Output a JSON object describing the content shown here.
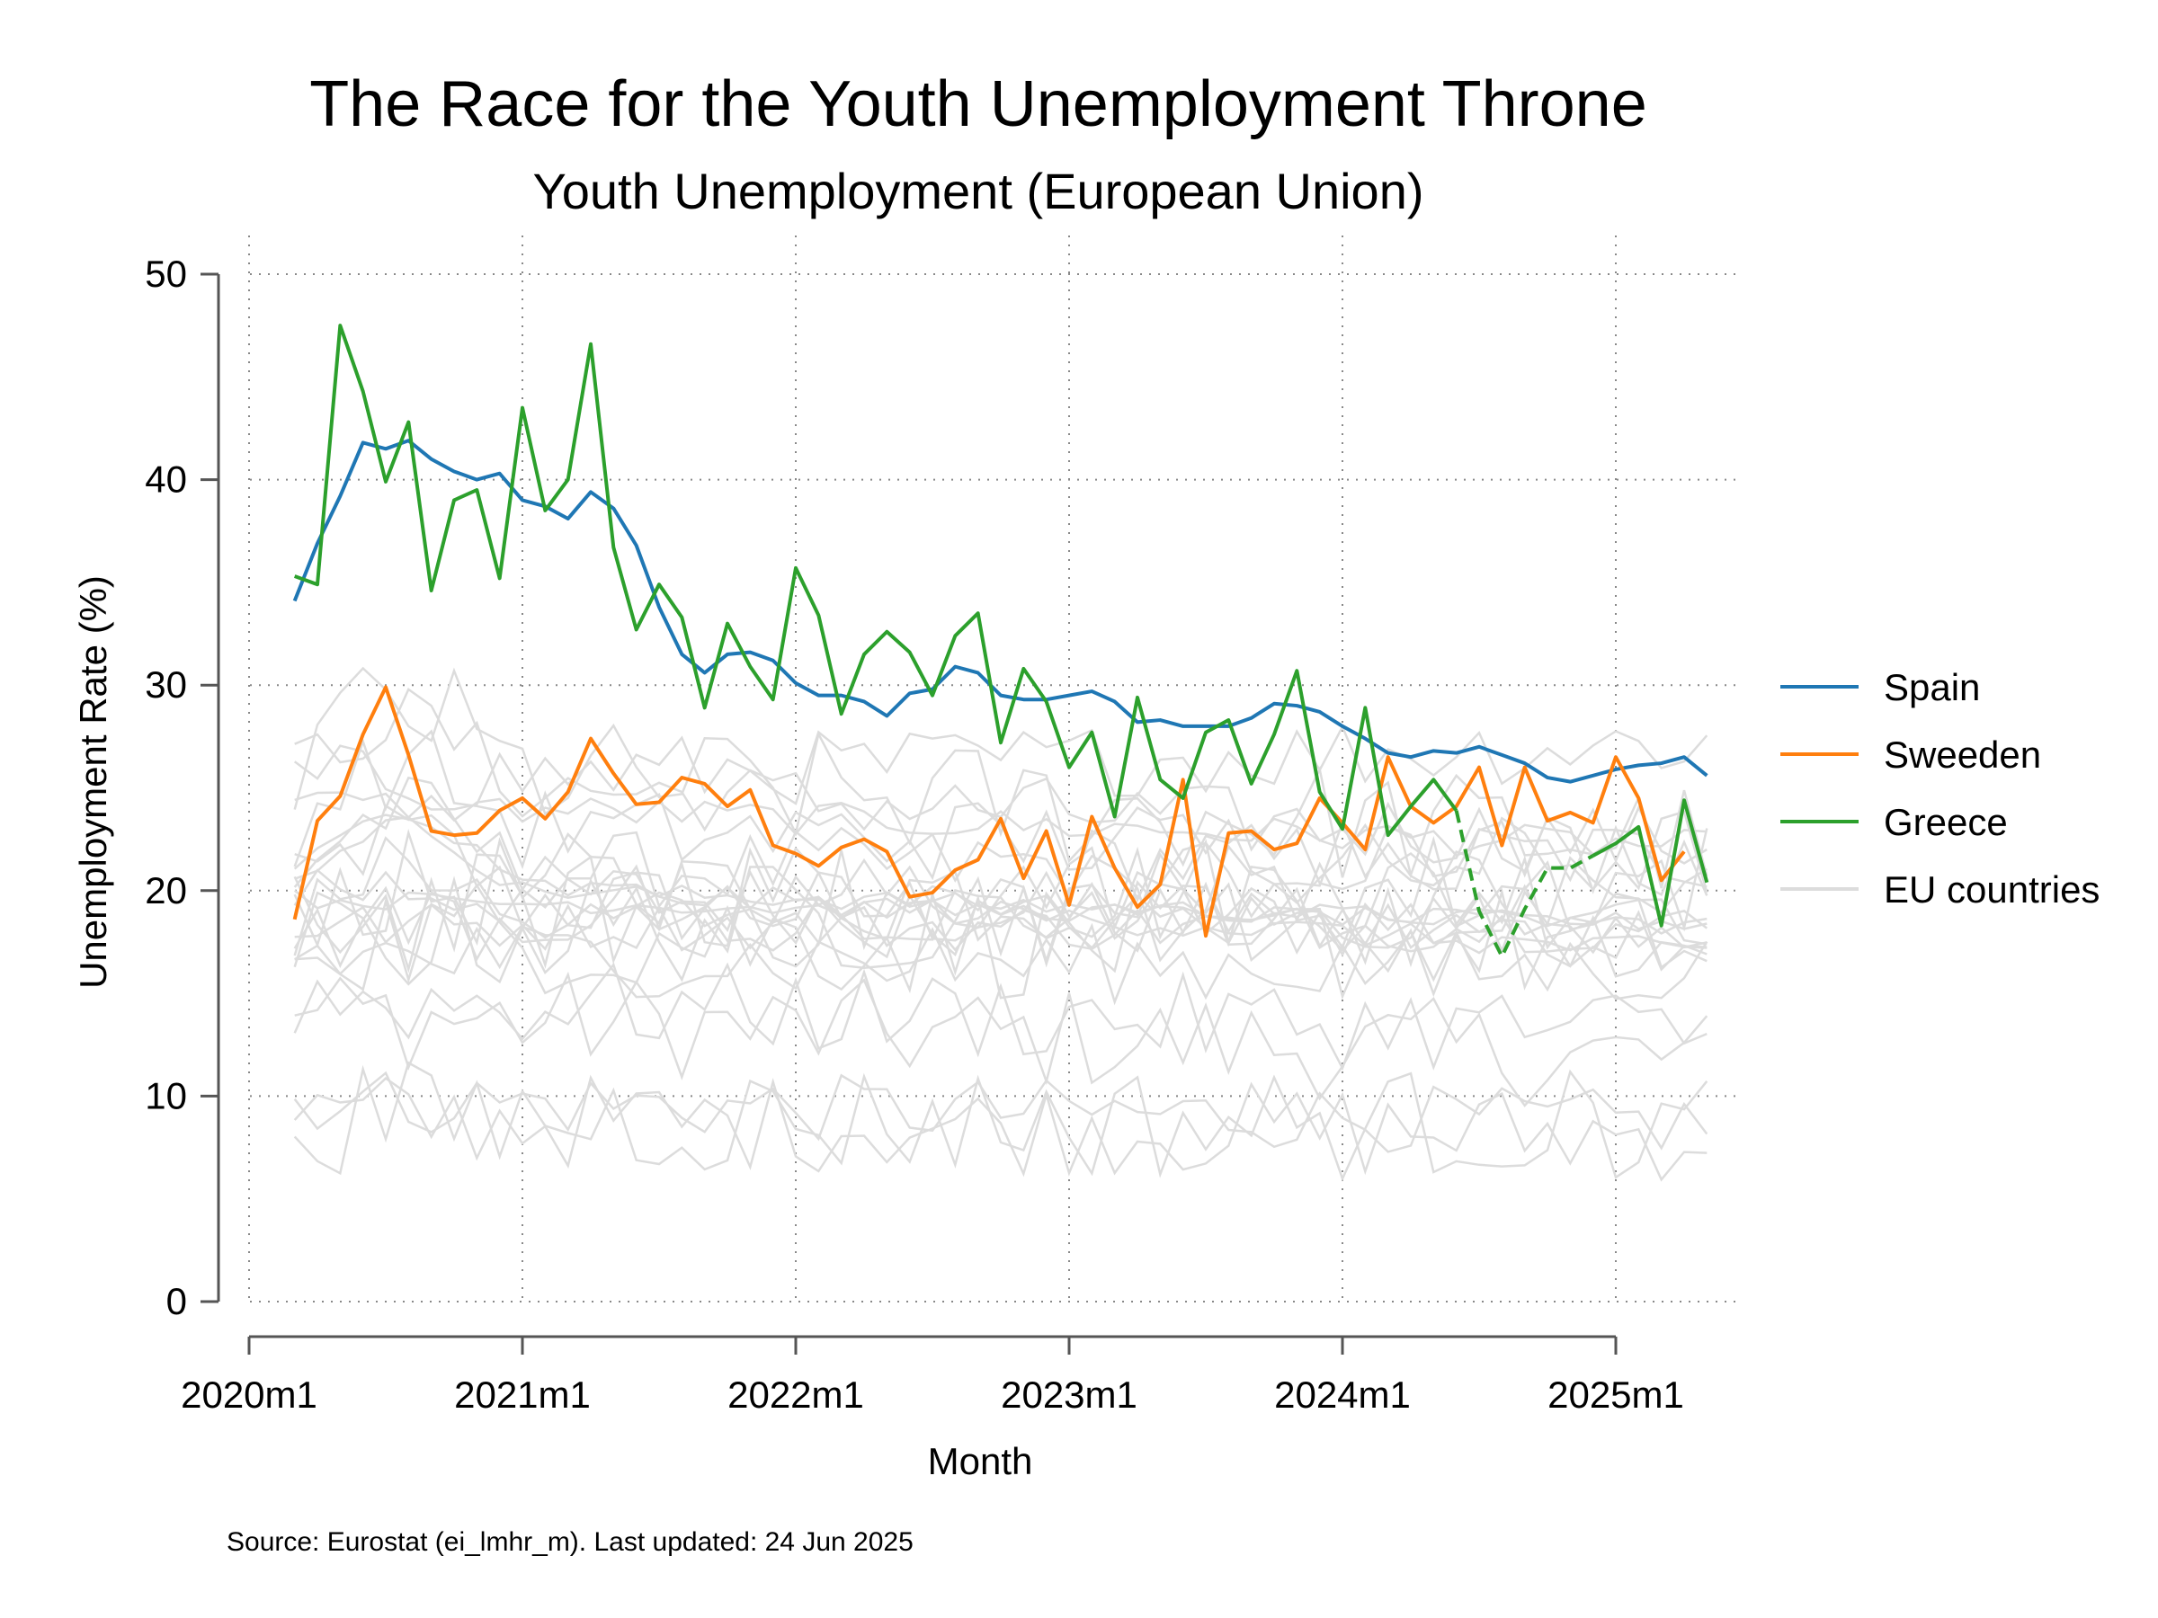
{
  "chart_data": {
    "type": "line",
    "title": "The Race for the Youth Unemployment Throne",
    "subtitle": "Youth Unemployment (European Union)",
    "xlabel": "Month",
    "ylabel": "Unemployment Rate (%)",
    "ylim": [
      0,
      50
    ],
    "yticks": [
      0,
      10,
      20,
      30,
      40,
      50
    ],
    "xlim": [
      0,
      64
    ],
    "xticks": [
      {
        "pos": 0,
        "label": "2020m1"
      },
      {
        "pos": 12,
        "label": "2021m1"
      },
      {
        "pos": 24,
        "label": "2022m1"
      },
      {
        "pos": 36,
        "label": "2023m1"
      },
      {
        "pos": 48,
        "label": "2024m1"
      },
      {
        "pos": 60,
        "label": "2025m1"
      }
    ],
    "grid": true,
    "legend_position": "right",
    "note": "Source: Eurostat (ei_lmhr_m). Last updated: 24 Jun 2025",
    "start_month": "2020m3",
    "series": [
      {
        "name": "Spain",
        "color": "#1f77b4",
        "values": [
          34.1,
          36.9,
          39.2,
          41.8,
          41.5,
          41.9,
          41.0,
          40.4,
          40.0,
          40.3,
          39.0,
          38.7,
          38.1,
          39.4,
          38.6,
          36.8,
          33.8,
          31.5,
          30.6,
          31.5,
          31.6,
          31.2,
          30.1,
          29.5,
          29.5,
          29.2,
          28.5,
          29.6,
          29.8,
          30.9,
          30.6,
          29.5,
          29.3,
          29.3,
          29.5,
          29.7,
          29.2,
          28.2,
          28.3,
          28.0,
          28.0,
          28.0,
          28.4,
          29.1,
          29.0,
          28.7,
          28.0,
          27.4,
          26.7,
          26.5,
          26.8,
          26.7,
          27.0,
          26.6,
          26.2,
          25.5,
          25.3,
          25.6,
          25.9,
          26.1,
          26.2,
          26.5,
          25.6
        ]
      },
      {
        "name": "Sweeden",
        "color": "#ff7f0e",
        "values": [
          18.6,
          23.4,
          24.6,
          27.6,
          29.9,
          26.6,
          22.9,
          22.7,
          22.8,
          23.9,
          24.5,
          23.5,
          24.8,
          27.4,
          25.7,
          24.2,
          24.3,
          25.5,
          25.2,
          24.1,
          24.9,
          22.2,
          21.8,
          21.2,
          22.1,
          22.5,
          21.9,
          19.7,
          19.9,
          21.0,
          21.5,
          23.5,
          20.6,
          22.9,
          19.3,
          23.6,
          21.1,
          19.2,
          20.3,
          25.4,
          17.8,
          22.8,
          22.9,
          22.0,
          22.3,
          24.5,
          23.3,
          22.0,
          26.5,
          24.1,
          23.3,
          24.1,
          26.0,
          22.2,
          26.0,
          23.4,
          23.8,
          23.3,
          26.5,
          24.5,
          20.5,
          21.9
        ]
      },
      {
        "name": "Greece",
        "color": "#2ca02c",
        "values": [
          35.3,
          34.9,
          47.5,
          44.3,
          39.9,
          42.8,
          34.6,
          39.0,
          39.5,
          35.2,
          43.5,
          38.5,
          40.0,
          46.6,
          36.7,
          32.7,
          34.9,
          33.3,
          28.9,
          33.0,
          30.9,
          29.3,
          35.7,
          33.4,
          28.6,
          31.5,
          32.6,
          31.6,
          29.5,
          32.4,
          33.5,
          27.2,
          30.8,
          29.2,
          26.0,
          27.7,
          23.6,
          29.4,
          25.4,
          24.5,
          27.7,
          28.3,
          25.2,
          27.6,
          30.7,
          24.8,
          23.0,
          28.9,
          22.7,
          24.1,
          25.4,
          23.9,
          19.0,
          16.8,
          19.1,
          21.1,
          21.1,
          21.7,
          22.3,
          23.1,
          18.3,
          24.4,
          20.4
        ],
        "dashed_from_index": 51,
        "dashed_to_index": 57
      },
      {
        "name": "EU countries",
        "color": "#dcdcdc",
        "values": []
      }
    ]
  }
}
